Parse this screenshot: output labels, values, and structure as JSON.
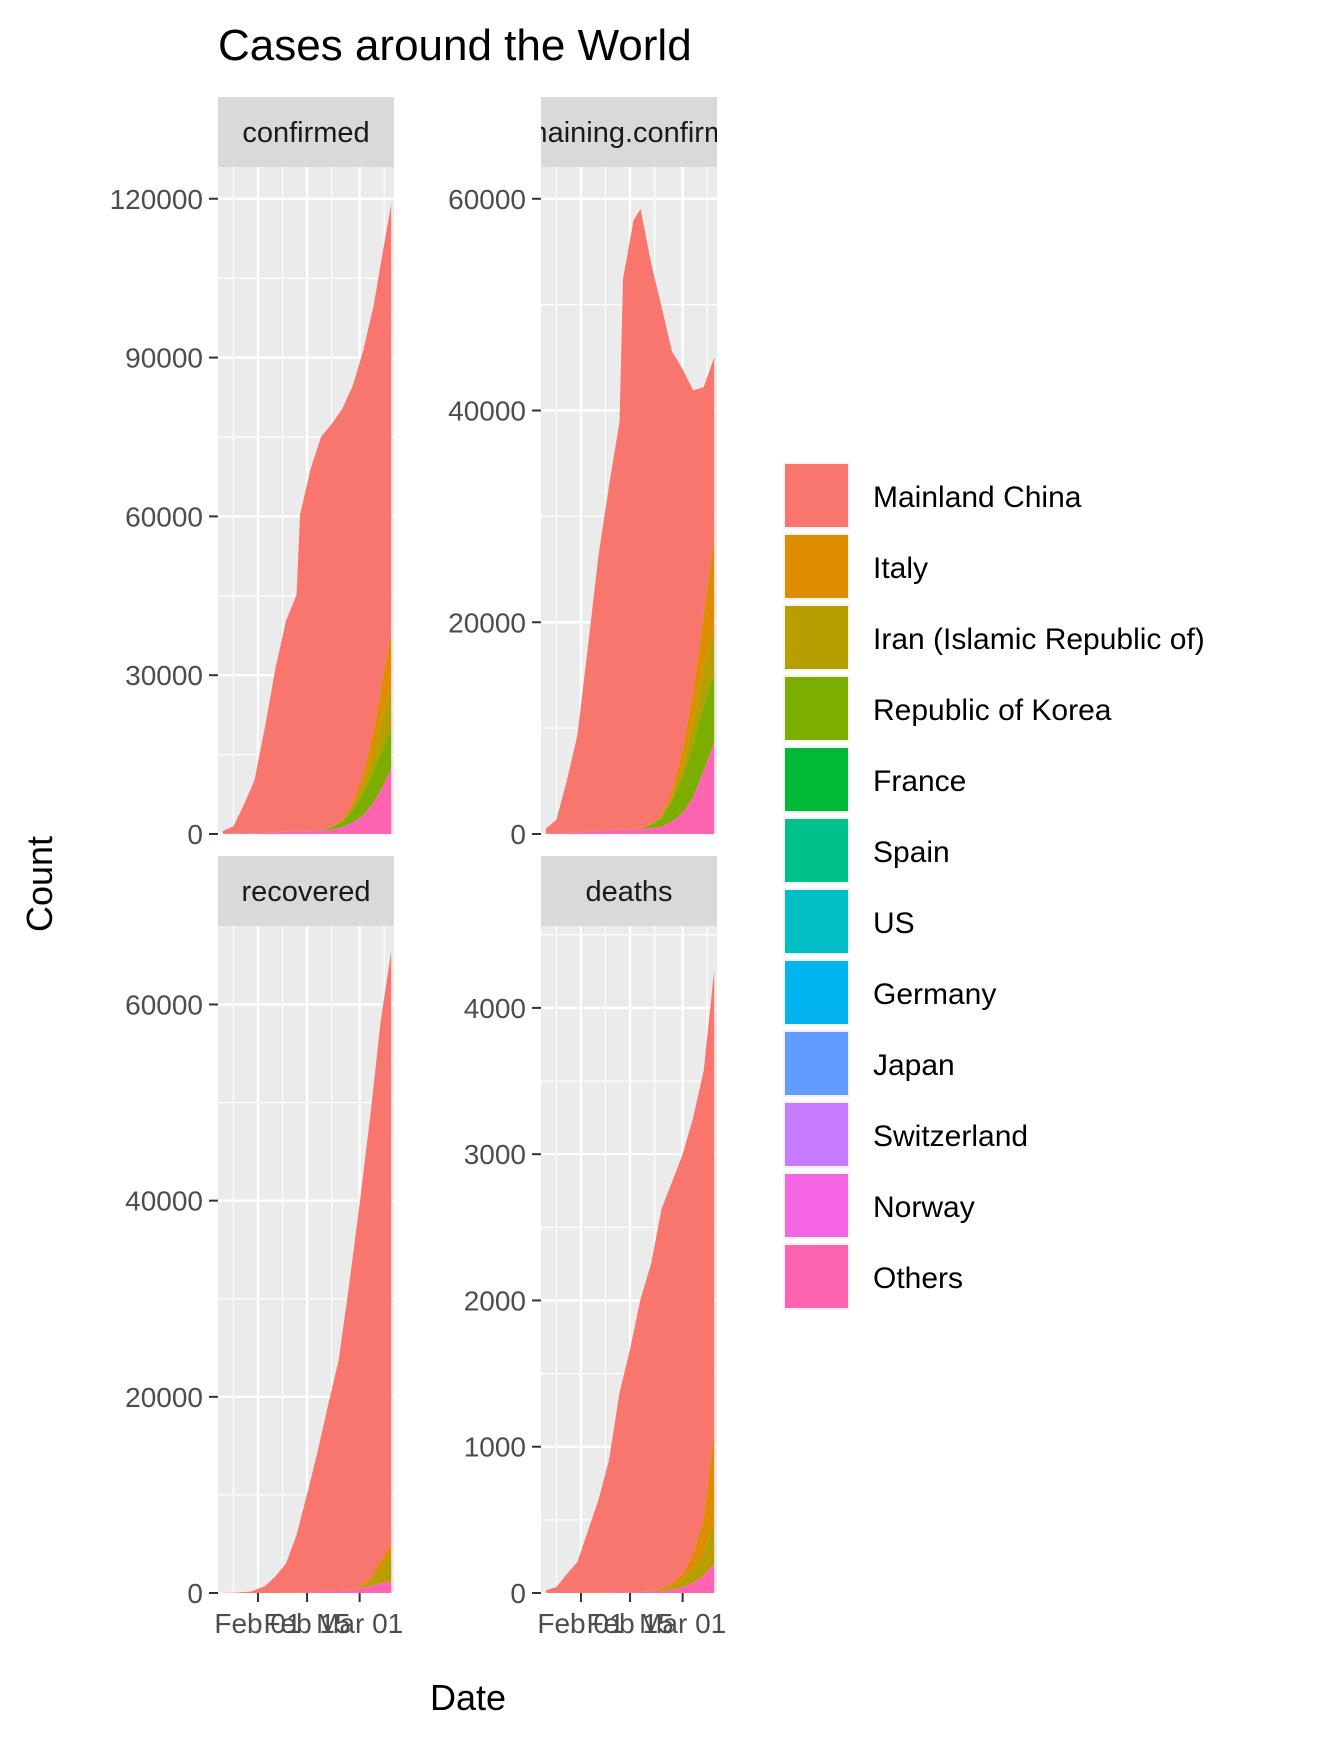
{
  "chart_data": {
    "type": "area",
    "title": "Cases around the World",
    "xlabel": "Date",
    "ylabel": "Count",
    "x_ticks": [
      "Feb 01",
      "Feb 15",
      "Mar 01"
    ],
    "x_range": [
      "2020-01-22",
      "2020-03-10"
    ],
    "legend": {
      "position": "right",
      "entries": [
        {
          "name": "Mainland China",
          "color": "#F8766D"
        },
        {
          "name": "Italy",
          "color": "#DE8C00"
        },
        {
          "name": "Iran (Islamic Republic of)",
          "color": "#B79F00"
        },
        {
          "name": "Republic of Korea",
          "color": "#7CAE00"
        },
        {
          "name": "France",
          "color": "#00BA38"
        },
        {
          "name": "Spain",
          "color": "#00C08B"
        },
        {
          "name": "US",
          "color": "#00BFC4"
        },
        {
          "name": "Germany",
          "color": "#00B4F0"
        },
        {
          "name": "Japan",
          "color": "#619CFF"
        },
        {
          "name": "Switzerland",
          "color": "#C77CFF"
        },
        {
          "name": "Norway",
          "color": "#F564E3"
        },
        {
          "name": "Others",
          "color": "#FF64B0"
        }
      ]
    },
    "panels": [
      {
        "strip": "confirmed",
        "ylim": [
          0,
          126000
        ],
        "y_ticks": [
          0,
          30000,
          60000,
          90000,
          120000
        ],
        "dates": [
          "2020-01-22",
          "2020-01-25",
          "2020-01-28",
          "2020-01-31",
          "2020-02-03",
          "2020-02-06",
          "2020-02-09",
          "2020-02-12",
          "2020-02-13",
          "2020-02-16",
          "2020-02-19",
          "2020-02-22",
          "2020-02-25",
          "2020-02-28",
          "2020-03-02",
          "2020-03-05",
          "2020-03-08",
          "2020-03-10"
        ],
        "series": [
          {
            "name": "Mainland China",
            "values": [
              550,
              1400,
              5500,
              10000,
              20000,
              31000,
              39800,
              44700,
              59800,
              68300,
              74300,
              76000,
              77600,
              78800,
              80000,
              80400,
              80700,
              80800
            ]
          },
          {
            "name": "Italy",
            "values": [
              0,
              0,
              0,
              2,
              2,
              2,
              3,
              3,
              3,
              3,
              3,
              62,
              322,
              888,
              2036,
              3858,
              7375,
              10149
            ]
          },
          {
            "name": "Iran (Islamic Republic of)",
            "values": [
              0,
              0,
              0,
              0,
              0,
              0,
              0,
              0,
              0,
              0,
              2,
              28,
              95,
              388,
              1501,
              3513,
              6566,
              8042
            ]
          },
          {
            "name": "Republic of Korea",
            "values": [
              1,
              2,
              4,
              11,
              15,
              23,
              25,
              28,
              28,
              29,
              46,
              433,
              977,
              2337,
              4212,
              6088,
              7314,
              7513
            ]
          },
          {
            "name": "Others",
            "values": [
              5,
              40,
              80,
              150,
              220,
              330,
              440,
              500,
              520,
              600,
              700,
              900,
              1300,
              2200,
              3500,
              6000,
              9500,
              12500
            ]
          }
        ]
      },
      {
        "strip": "remaining.confirmed",
        "ylim": [
          0,
          63000
        ],
        "y_ticks": [
          0,
          20000,
          40000,
          60000
        ],
        "dates": [
          "2020-01-22",
          "2020-01-25",
          "2020-01-28",
          "2020-01-31",
          "2020-02-03",
          "2020-02-06",
          "2020-02-09",
          "2020-02-12",
          "2020-02-13",
          "2020-02-16",
          "2020-02-18",
          "2020-02-21",
          "2020-02-24",
          "2020-02-27",
          "2020-03-01",
          "2020-03-04",
          "2020-03-07",
          "2020-03-10"
        ],
        "series": [
          {
            "name": "Mainland China",
            "values": [
              500,
              1300,
              5000,
              9200,
              17500,
              26000,
              32500,
              38500,
              52000,
              57500,
              58500,
              53000,
              48000,
              41500,
              36000,
              28500,
              21500,
              16800
            ]
          },
          {
            "name": "Italy",
            "values": [
              0,
              0,
              0,
              2,
              2,
              2,
              3,
              3,
              3,
              3,
              3,
              20,
              229,
              600,
              1500,
              2700,
              5000,
              8500
            ]
          },
          {
            "name": "Iran (Islamic Republic of)",
            "values": [
              0,
              0,
              0,
              0,
              0,
              0,
              0,
              0,
              0,
              0,
              0,
              15,
              50,
              250,
              900,
              2200,
              3500,
              4500
            ]
          },
          {
            "name": "Republic of Korea",
            "values": [
              1,
              2,
              4,
              11,
              15,
              23,
              22,
              20,
              20,
              20,
              28,
              340,
              800,
              2000,
              3500,
              5000,
              6200,
              6500
            ]
          },
          {
            "name": "Others",
            "values": [
              5,
              40,
              80,
              140,
              200,
              290,
              380,
              420,
              430,
              460,
              500,
              550,
              700,
              1200,
              2000,
              3500,
              6000,
              8700
            ]
          }
        ]
      },
      {
        "strip": "recovered",
        "ylim": [
          0,
          68000
        ],
        "y_ticks": [
          0,
          20000,
          40000,
          60000
        ],
        "dates": [
          "2020-01-22",
          "2020-01-26",
          "2020-01-30",
          "2020-02-03",
          "2020-02-06",
          "2020-02-09",
          "2020-02-12",
          "2020-02-15",
          "2020-02-18",
          "2020-02-21",
          "2020-02-24",
          "2020-02-27",
          "2020-03-01",
          "2020-03-04",
          "2020-03-07",
          "2020-03-10"
        ],
        "series": [
          {
            "name": "Mainland China",
            "values": [
              28,
              49,
              150,
              700,
              1700,
              3000,
              5900,
              10000,
              14300,
              19000,
              23500,
              31000,
              39000,
              47000,
              55000,
              60500
            ]
          },
          {
            "name": "Italy",
            "values": [
              0,
              0,
              0,
              0,
              0,
              0,
              0,
              0,
              0,
              0,
              1,
              45,
              83,
              276,
              622,
              1004
            ]
          },
          {
            "name": "Iran (Islamic Republic of)",
            "values": [
              0,
              0,
              0,
              0,
              0,
              0,
              0,
              0,
              0,
              0,
              0,
              49,
              123,
              552,
              1669,
              2731
            ]
          },
          {
            "name": "Others",
            "values": [
              0,
              0,
              0,
              2,
              5,
              10,
              15,
              50,
              100,
              150,
              200,
              300,
              500,
              700,
              1000,
              1200
            ]
          }
        ]
      },
      {
        "strip": "deaths",
        "ylim": [
          0,
          4560
        ],
        "y_ticks": [
          0,
          1000,
          2000,
          3000,
          4000
        ],
        "dates": [
          "2020-01-22",
          "2020-01-25",
          "2020-01-28",
          "2020-01-31",
          "2020-02-03",
          "2020-02-06",
          "2020-02-09",
          "2020-02-12",
          "2020-02-15",
          "2020-02-18",
          "2020-02-21",
          "2020-02-24",
          "2020-02-27",
          "2020-03-01",
          "2020-03-04",
          "2020-03-07",
          "2020-03-10"
        ],
        "series": [
          {
            "name": "Mainland China",
            "values": [
              17,
              41,
              131,
              213,
              425,
              636,
              908,
              1367,
              1662,
              2004,
              2236,
              2592,
              2744,
              2870,
              2981,
              3070,
              3136
            ]
          },
          {
            "name": "Italy",
            "values": [
              0,
              0,
              0,
              0,
              0,
              0,
              0,
              0,
              0,
              0,
              1,
              7,
              17,
              34,
              107,
              233,
              631
            ]
          },
          {
            "name": "Iran (Islamic Republic of)",
            "values": [
              0,
              0,
              0,
              0,
              0,
              0,
              0,
              0,
              0,
              0,
              4,
              12,
              26,
              54,
              92,
              145,
              291
            ]
          },
          {
            "name": "Others",
            "values": [
              0,
              0,
              0,
              0,
              1,
              1,
              2,
              3,
              5,
              7,
              10,
              15,
              25,
              40,
              70,
              120,
              200
            ]
          }
        ]
      }
    ]
  }
}
